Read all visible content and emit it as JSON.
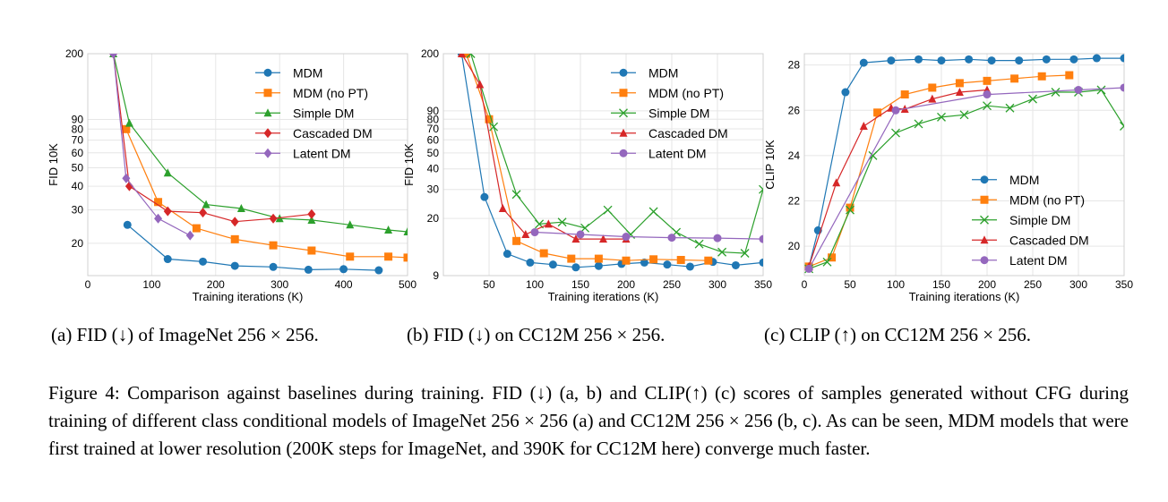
{
  "chart_data": [
    {
      "type": "line",
      "yscale": "log",
      "xlabel": "Training iterations (K)",
      "ylabel": "FID 10K",
      "xlim": [
        0,
        500
      ],
      "ylim": [
        13.5,
        200
      ],
      "xticks": [
        "0",
        "100",
        "200",
        "300",
        "400",
        "500"
      ],
      "xtick_values": [
        0,
        100,
        200,
        300,
        400,
        500
      ],
      "yticks": [
        "20",
        "30",
        "40",
        "50",
        "60",
        "70",
        "80",
        "90",
        "200"
      ],
      "ytick_values": [
        20,
        30,
        40,
        50,
        60,
        70,
        80,
        90,
        200
      ],
      "legend_position": "top-right",
      "grid": true,
      "series": [
        {
          "name": "MDM",
          "color": "#1f77b4",
          "marker": "circle",
          "x": [
            62,
            125,
            180,
            230,
            290,
            345,
            400,
            455
          ],
          "y": [
            25,
            16.5,
            16,
            15.2,
            15,
            14.5,
            14.6,
            14.4
          ]
        },
        {
          "name": "MDM (no PT)",
          "color": "#ff7f0e",
          "marker": "square",
          "x": [
            60,
            110,
            170,
            230,
            290,
            350,
            410,
            470,
            500
          ],
          "y": [
            80,
            33,
            24,
            21,
            19.5,
            18.3,
            17,
            17,
            16.8
          ]
        },
        {
          "name": "Simple DM",
          "color": "#2ca02c",
          "marker": "triangle",
          "x": [
            40,
            65,
            125,
            185,
            240,
            300,
            350,
            410,
            470,
            500
          ],
          "y": [
            200,
            86,
            47,
            32,
            30.5,
            27,
            26.5,
            25,
            23.5,
            23
          ]
        },
        {
          "name": "Cascaded DM",
          "color": "#d62728",
          "marker": "diamond",
          "x": [
            40,
            65,
            125,
            180,
            230,
            290,
            350
          ],
          "y": [
            200,
            40,
            29.5,
            29,
            26,
            27,
            28.5
          ]
        },
        {
          "name": "Latent DM",
          "color": "#9467bd",
          "marker": "diamond",
          "x": [
            40,
            60,
            110,
            160
          ],
          "y": [
            200,
            44,
            27,
            22
          ]
        }
      ]
    },
    {
      "type": "line",
      "yscale": "log",
      "xlabel": "Training iterations (K)",
      "ylabel": "FID 10K",
      "xlim": [
        0,
        350
      ],
      "ylim": [
        9,
        200
      ],
      "xticks": [
        "50",
        "100",
        "150",
        "200",
        "250",
        "300",
        "350"
      ],
      "xtick_values": [
        50,
        100,
        150,
        200,
        250,
        300,
        350
      ],
      "yticks": [
        "9",
        "20",
        "30",
        "40",
        "50",
        "60",
        "70",
        "80",
        "90",
        "200"
      ],
      "ytick_values": [
        9,
        20,
        30,
        40,
        50,
        60,
        70,
        80,
        90,
        200
      ],
      "legend_position": "top-right",
      "grid": true,
      "series": [
        {
          "name": "MDM",
          "color": "#1f77b4",
          "marker": "circle",
          "x": [
            20,
            45,
            70,
            95,
            120,
            145,
            170,
            195,
            220,
            245,
            270,
            295,
            320,
            350
          ],
          "y": [
            200,
            27,
            12.2,
            10.8,
            10.5,
            10.1,
            10.3,
            10.6,
            10.8,
            10.5,
            10.2,
            10.9,
            10.4,
            10.8
          ]
        },
        {
          "name": "MDM (no PT)",
          "color": "#ff7f0e",
          "marker": "square",
          "x": [
            25,
            50,
            80,
            110,
            140,
            170,
            200,
            230,
            260,
            290
          ],
          "y": [
            200,
            80,
            14.6,
            12.3,
            11.4,
            11.4,
            11.1,
            11.3,
            11.2,
            11.1
          ]
        },
        {
          "name": "Simple DM",
          "color": "#2ca02c",
          "marker": "x",
          "x": [
            30,
            55,
            80,
            105,
            130,
            155,
            180,
            205,
            230,
            255,
            280,
            305,
            330,
            350
          ],
          "y": [
            200,
            72,
            28,
            18.5,
            19,
            17.5,
            22.5,
            16,
            22,
            16.5,
            14,
            12.5,
            12.3,
            30
          ]
        },
        {
          "name": "Cascaded DM",
          "color": "#d62728",
          "marker": "triangle",
          "x": [
            20,
            40,
            65,
            90,
            115,
            145,
            175,
            200
          ],
          "y": [
            200,
            130,
            23,
            16,
            18.5,
            15,
            15,
            15
          ]
        },
        {
          "name": "Latent DM",
          "color": "#9467bd",
          "marker": "circle",
          "x": [
            100,
            150,
            200,
            250,
            300,
            350
          ],
          "y": [
            16.5,
            16,
            15.5,
            15.3,
            15.2,
            15
          ]
        }
      ]
    },
    {
      "type": "line",
      "yscale": "linear",
      "xlabel": "Training iterations (K)",
      "ylabel": "CLIP 10K",
      "xlim": [
        0,
        350
      ],
      "ylim": [
        18.7,
        28.5
      ],
      "xticks": [
        "0",
        "50",
        "100",
        "150",
        "200",
        "250",
        "300",
        "350"
      ],
      "xtick_values": [
        0,
        50,
        100,
        150,
        200,
        250,
        300,
        350
      ],
      "yticks": [
        "20",
        "22",
        "24",
        "26",
        "28"
      ],
      "ytick_values": [
        20,
        22,
        24,
        26,
        28
      ],
      "legend_position": "lower-right",
      "grid": true,
      "series": [
        {
          "name": "MDM",
          "color": "#1f77b4",
          "marker": "circle",
          "x": [
            5,
            15,
            45,
            65,
            95,
            125,
            150,
            180,
            205,
            235,
            265,
            295,
            320,
            350
          ],
          "y": [
            19.1,
            20.7,
            26.8,
            28.1,
            28.2,
            28.25,
            28.2,
            28.25,
            28.2,
            28.2,
            28.25,
            28.25,
            28.3,
            28.3
          ]
        },
        {
          "name": "MDM (no PT)",
          "color": "#ff7f0e",
          "marker": "square",
          "x": [
            5,
            30,
            50,
            80,
            110,
            140,
            170,
            200,
            230,
            260,
            290
          ],
          "y": [
            19.1,
            19.5,
            21.7,
            25.9,
            26.7,
            27.0,
            27.2,
            27.3,
            27.4,
            27.5,
            27.55
          ]
        },
        {
          "name": "Simple DM",
          "color": "#2ca02c",
          "marker": "x",
          "x": [
            5,
            25,
            50,
            75,
            100,
            125,
            150,
            175,
            200,
            225,
            250,
            275,
            300,
            325,
            350
          ],
          "y": [
            19.0,
            19.3,
            21.6,
            24.0,
            25.0,
            25.4,
            25.7,
            25.8,
            26.2,
            26.1,
            26.5,
            26.8,
            26.8,
            26.9,
            25.3
          ]
        },
        {
          "name": "Cascaded DM",
          "color": "#d62728",
          "marker": "triangle",
          "x": [
            5,
            35,
            65,
            95,
            110,
            140,
            170,
            200
          ],
          "y": [
            19.1,
            22.8,
            25.3,
            26.1,
            26.05,
            26.5,
            26.8,
            26.9
          ]
        },
        {
          "name": "Latent DM",
          "color": "#9467bd",
          "marker": "circle",
          "x": [
            5,
            100,
            200,
            300,
            350
          ],
          "y": [
            19.0,
            26.0,
            26.7,
            26.9,
            27.0
          ]
        }
      ]
    }
  ],
  "captions": {
    "a": "(a) FID (↓) of ImageNet 256 × 256.",
    "b": "(b) FID (↓) on CC12M 256 × 256.",
    "c": "(c) CLIP (↑) on CC12M 256 × 256.",
    "figure": "Figure 4:  Comparison against baselines during training.  FID (↓) (a, b) and CLIP(↑) (c) scores of samples generated without CFG during training of different class conditional models of ImageNet 256 × 256 (a) and CC12M 256 × 256 (b, c). As can be seen, MDM models that were first trained at lower resolution (200K steps for ImageNet, and 390K for CC12M here) converge much faster."
  }
}
